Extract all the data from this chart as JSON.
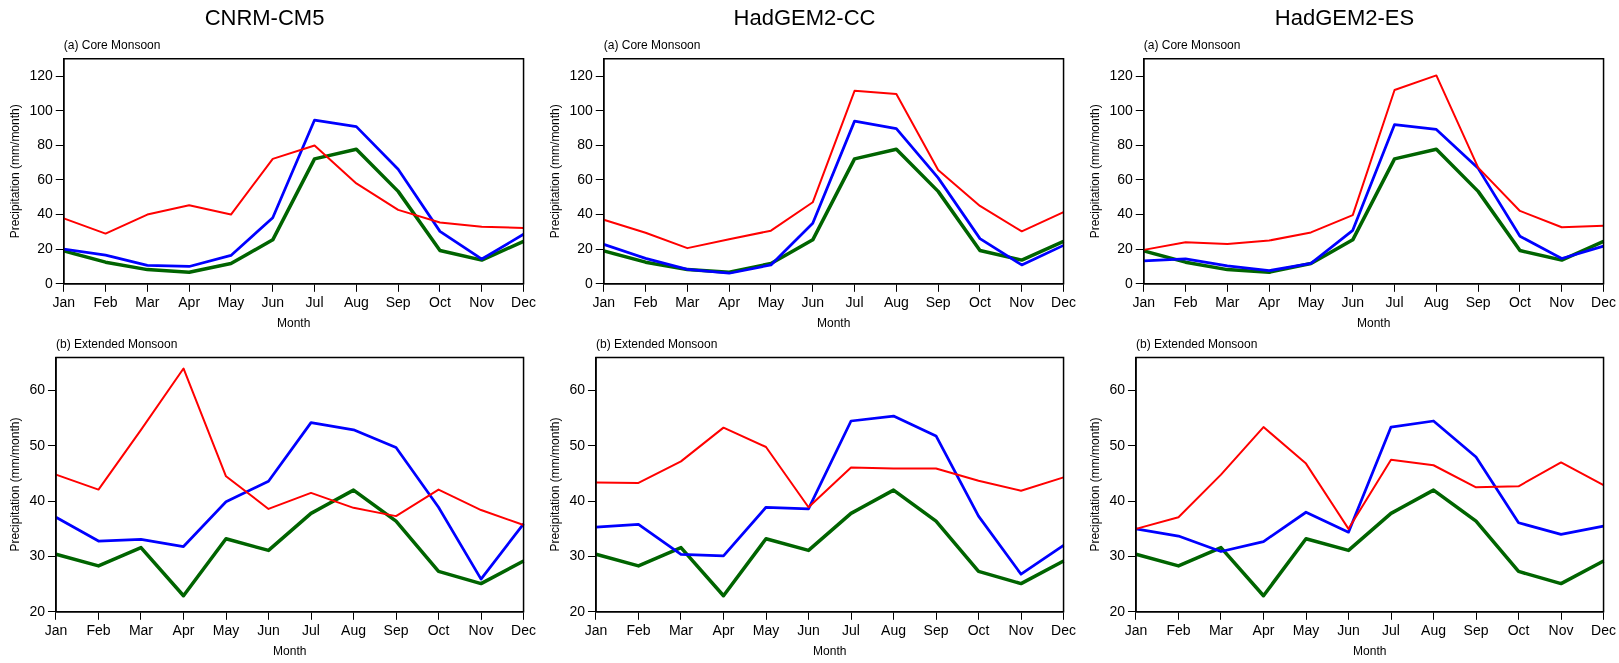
{
  "chart_data": [
    {
      "type": "line",
      "title": "CNRM-CM5",
      "subtitle": "(a) Core Monsoon",
      "xlabel": "Month",
      "ylabel": "Precipitation (mm/month)",
      "categories": [
        "Jan",
        "Feb",
        "Mar",
        "Apr",
        "May",
        "Jun",
        "Jul",
        "Aug",
        "Sep",
        "Oct",
        "Nov",
        "Dec"
      ],
      "series": [
        {
          "color": "#ff0000",
          "values": [
            37.8,
            29,
            40,
            45.4,
            40,
            72.2,
            79.9,
            58,
            42.7,
            35.4,
            32.9,
            32.3
          ]
        },
        {
          "color": "#0000ff",
          "values": [
            20,
            16.6,
            10.6,
            10,
            16.4,
            38.2,
            94.6,
            90.8,
            66.2,
            30.3,
            14.3,
            28.6
          ]
        },
        {
          "color": "#006400",
          "values": [
            19,
            12.5,
            8.2,
            6.7,
            11.7,
            25.4,
            72.2,
            77.7,
            53.4,
            19.2,
            13.7,
            24.5
          ]
        }
      ],
      "ylim": [
        0,
        130
      ],
      "yticks": [
        0,
        20,
        40,
        60,
        80,
        100,
        120
      ],
      "grid": false,
      "legend": false,
      "marker": "none",
      "line_style": "solid"
    },
    {
      "type": "line",
      "title": "HadGEM2-CC",
      "subtitle": "(a) Core Monsoon",
      "xlabel": "Month",
      "ylabel": "Precipitation (mm/month)",
      "categories": [
        "Jan",
        "Feb",
        "Mar",
        "Apr",
        "May",
        "Jun",
        "Jul",
        "Aug",
        "Sep",
        "Oct",
        "Nov",
        "Dec"
      ],
      "series": [
        {
          "color": "#ff0000",
          "values": [
            37,
            29.5,
            20.6,
            25.7,
            30.7,
            47.1,
            111.5,
            109.7,
            65.7,
            45,
            30.3,
            41.4
          ]
        },
        {
          "color": "#0000ff",
          "values": [
            22.8,
            14.7,
            8.3,
            6.1,
            10.9,
            35,
            94,
            89.7,
            61.2,
            26.1,
            10.9,
            22.2
          ]
        },
        {
          "color": "#006400",
          "values": [
            19,
            12.5,
            8.2,
            6.7,
            11.7,
            25.4,
            72.2,
            77.7,
            53.4,
            19.2,
            13.7,
            24.5
          ]
        }
      ],
      "ylim": [
        0,
        130
      ],
      "yticks": [
        0,
        20,
        40,
        60,
        80,
        100,
        120
      ],
      "grid": false,
      "legend": false,
      "marker": "none",
      "line_style": "solid"
    },
    {
      "type": "line",
      "title": "HadGEM2-ES",
      "subtitle": "(a) Core Monsoon",
      "xlabel": "Month",
      "ylabel": "Precipitation (mm/month)",
      "categories": [
        "Jan",
        "Feb",
        "Mar",
        "Apr",
        "May",
        "Jun",
        "Jul",
        "Aug",
        "Sep",
        "Oct",
        "Nov",
        "Dec"
      ],
      "series": [
        {
          "color": "#ff0000",
          "values": [
            19.6,
            24,
            23,
            25,
            29.7,
            39.7,
            112,
            120.4,
            67.1,
            42.1,
            32.7,
            33.5
          ]
        },
        {
          "color": "#0000ff",
          "values": [
            13.2,
            14.4,
            10.4,
            7.6,
            11.8,
            30.9,
            92,
            89.2,
            66.7,
            27.5,
            14.6,
            21.8
          ]
        },
        {
          "color": "#006400",
          "values": [
            19,
            12.5,
            8.2,
            6.7,
            11.7,
            25.4,
            72.2,
            77.7,
            53.4,
            19.2,
            13.7,
            24.5
          ]
        }
      ],
      "ylim": [
        0,
        130
      ],
      "yticks": [
        0,
        20,
        40,
        60,
        80,
        100,
        120
      ],
      "grid": false,
      "legend": false,
      "marker": "none",
      "line_style": "solid"
    },
    {
      "type": "line",
      "subtitle": "(b) Extended Monsoon",
      "xlabel": "Month",
      "ylabel": "Precipitation (mm/month)",
      "categories": [
        "Jan",
        "Feb",
        "Mar",
        "Apr",
        "May",
        "Jun",
        "Jul",
        "Aug",
        "Sep",
        "Oct",
        "Nov",
        "Dec"
      ],
      "series": [
        {
          "color": "#ff0000",
          "values": [
            44.8,
            42.1,
            52.9,
            64,
            44.5,
            38.6,
            41.5,
            38.8,
            37.3,
            42.1,
            38.4,
            35.7
          ]
        },
        {
          "color": "#0000ff",
          "values": [
            37.1,
            32.8,
            33.1,
            31.8,
            39.9,
            43.6,
            54.2,
            52.9,
            49.7,
            38.9,
            25.9,
            35.9
          ]
        },
        {
          "color": "#006400",
          "values": [
            30.4,
            28.3,
            31.6,
            22.9,
            33.2,
            31.1,
            37.8,
            42,
            36.4,
            27.3,
            25.1,
            29.2
          ]
        }
      ],
      "ylim": [
        20,
        66
      ],
      "yticks": [
        20,
        30,
        40,
        50,
        60
      ],
      "grid": false,
      "legend": false,
      "marker": "none",
      "line_style": "solid"
    },
    {
      "type": "line",
      "subtitle": "(b) Extended Monsoon",
      "xlabel": "Month",
      "ylabel": "Precipitation (mm/month)",
      "categories": [
        "Jan",
        "Feb",
        "Mar",
        "Apr",
        "May",
        "Jun",
        "Jul",
        "Aug",
        "Sep",
        "Oct",
        "Nov",
        "Dec"
      ],
      "series": [
        {
          "color": "#ff0000",
          "values": [
            43.4,
            43.3,
            47.2,
            53.3,
            49.8,
            38.9,
            46.1,
            45.9,
            45.9,
            43.7,
            41.9,
            44.3
          ]
        },
        {
          "color": "#0000ff",
          "values": [
            35.3,
            35.8,
            30.4,
            30.1,
            38.9,
            38.6,
            54.5,
            55.4,
            51.8,
            37.3,
            26.8,
            32
          ]
        },
        {
          "color": "#006400",
          "values": [
            30.4,
            28.3,
            31.6,
            22.9,
            33.2,
            31.1,
            37.8,
            42,
            36.4,
            27.3,
            25.1,
            29.2
          ]
        }
      ],
      "ylim": [
        20,
        66
      ],
      "yticks": [
        20,
        30,
        40,
        50,
        60
      ],
      "grid": false,
      "legend": false,
      "marker": "none",
      "line_style": "solid"
    },
    {
      "type": "line",
      "subtitle": "(b) Extended Monsoon",
      "xlabel": "Month",
      "ylabel": "Precipitation (mm/month)",
      "categories": [
        "Jan",
        "Feb",
        "Mar",
        "Apr",
        "May",
        "Jun",
        "Jul",
        "Aug",
        "Sep",
        "Oct",
        "Nov",
        "Dec"
      ],
      "series": [
        {
          "color": "#ff0000",
          "values": [
            35,
            37.1,
            44.8,
            53.4,
            46.8,
            35,
            47.5,
            46.5,
            42.5,
            42.7,
            47,
            42.9
          ]
        },
        {
          "color": "#0000ff",
          "values": [
            35,
            33.7,
            30.9,
            32.7,
            38,
            34.4,
            53.4,
            54.5,
            48,
            36.1,
            34,
            35.5
          ]
        },
        {
          "color": "#006400",
          "values": [
            30.4,
            28.3,
            31.6,
            22.9,
            33.2,
            31.1,
            37.8,
            42,
            36.4,
            27.3,
            25.1,
            29.2
          ]
        }
      ],
      "ylim": [
        20,
        66
      ],
      "yticks": [
        20,
        30,
        40,
        50,
        60
      ],
      "grid": false,
      "legend": false,
      "marker": "none",
      "line_style": "solid"
    }
  ]
}
